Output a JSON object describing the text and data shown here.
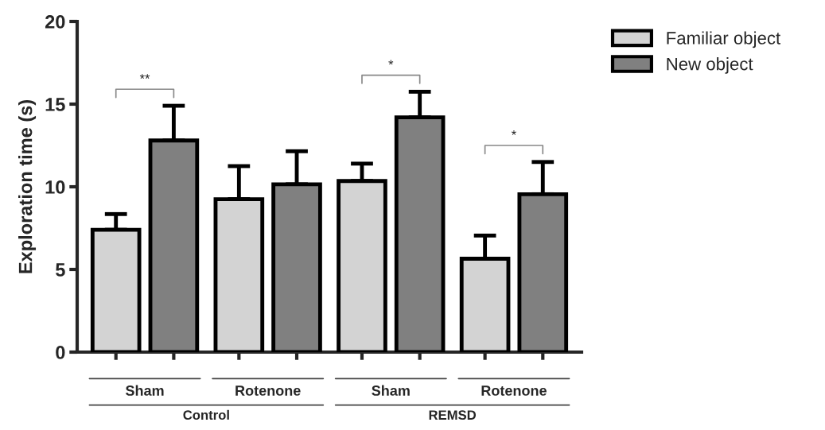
{
  "chart_data": {
    "type": "bar",
    "ylabel": "Exploration time (s)",
    "categories": [
      "Sham",
      "Rotenone",
      "Sham",
      "Rotenone"
    ],
    "series": [
      {
        "name": "Familiar object",
        "color": "#d3d3d3",
        "values": [
          7.4,
          9.25,
          10.35,
          5.65
        ],
        "errors": [
          [
            7.4,
            8.35
          ],
          [
            9.25,
            11.25
          ],
          [
            10.35,
            11.4
          ],
          [
            5.65,
            7.05
          ]
        ]
      },
      {
        "name": "New object",
        "color": "#808080",
        "values": [
          12.8,
          10.15,
          14.2,
          9.55
        ],
        "errors": [
          [
            12.8,
            14.9
          ],
          [
            10.15,
            12.15
          ],
          [
            14.2,
            15.75
          ],
          [
            9.55,
            11.5
          ]
        ]
      }
    ],
    "ylim": [
      0,
      20
    ],
    "yticks": [
      0,
      5,
      10,
      15,
      20
    ],
    "grid": false,
    "legend": "top right",
    "annotations": [
      "**",
      "*",
      "*",
      "Control",
      "REMSD"
    ]
  }
}
